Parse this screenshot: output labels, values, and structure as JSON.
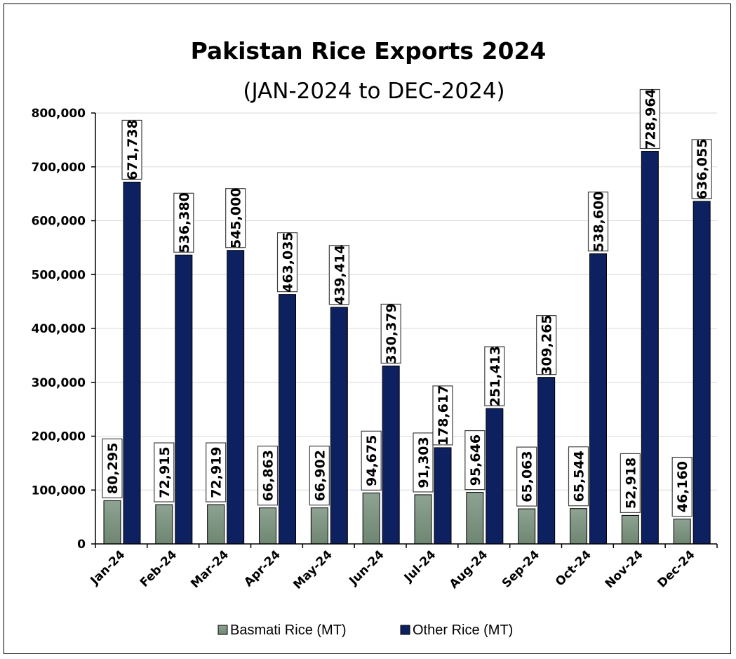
{
  "chart_data": {
    "type": "bar",
    "title": "Pakistan Rice Exports 2024",
    "subtitle": "(JAN-2024 to DEC-2024)",
    "xlabel": "",
    "ylabel": "",
    "ylim": [
      0,
      800000
    ],
    "yticks": [
      0,
      100000,
      200000,
      300000,
      400000,
      500000,
      600000,
      700000,
      800000
    ],
    "ytick_labels": [
      "0",
      "100,000",
      "200,000",
      "300,000",
      "400,000",
      "500,000",
      "600,000",
      "700,000",
      "800,000"
    ],
    "grid": true,
    "legend_position": "bottom",
    "categories": [
      "Jan-24",
      "Feb-24",
      "Mar-24",
      "Apr-24",
      "May-24",
      "Jun-24",
      "Jul-24",
      "Aug-24",
      "Sep-24",
      "Oct-24",
      "Nov-24",
      "Dec-24"
    ],
    "series": [
      {
        "name": "Basmati Rice (MT)",
        "color": "#7f9683",
        "values": [
          80295,
          72915,
          72919,
          66863,
          66902,
          94675,
          91303,
          95646,
          65063,
          65544,
          52918,
          46160
        ],
        "labels": [
          "80,295",
          "72,915",
          "72,919",
          "66,863",
          "66,902",
          "94,675",
          "91,303",
          "95,646",
          "65,063",
          "65,544",
          "52,918",
          "46,160"
        ]
      },
      {
        "name": "Other Rice (MT)",
        "color": "#0d2060",
        "values": [
          671738,
          536380,
          545000,
          463035,
          439414,
          330379,
          178617,
          251413,
          309265,
          538600,
          728964,
          636055
        ],
        "labels": [
          "671,738",
          "536,380",
          "545,000",
          "463,035",
          "439,414",
          "330,379",
          "178,617",
          "251,413",
          "309,265",
          "538,600",
          "728,964",
          "636,055"
        ]
      }
    ]
  }
}
